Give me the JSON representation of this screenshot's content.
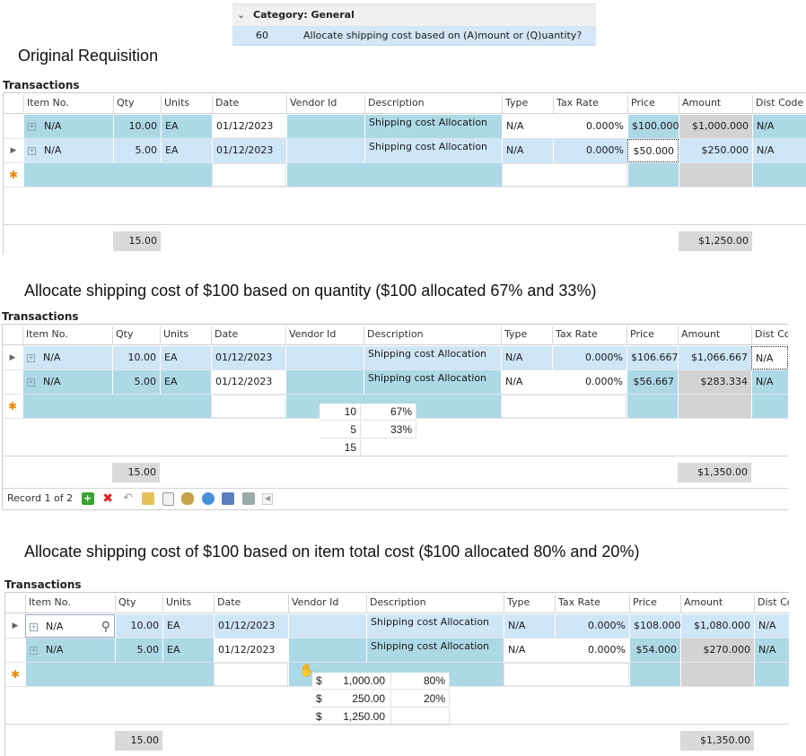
{
  "category": {
    "title": "Category: General",
    "row_number": "60",
    "row_text": "Allocate shipping cost based on (A)mount or (Q)uantity?"
  },
  "headings": {
    "original": "Original Requisition",
    "by_quantity": "Allocate shipping cost of $100 based on quantity ($100 allocated 67% and 33%)",
    "by_cost": "Allocate shipping cost of $100 based on item total cost ($100 allocated 80% and 20%)"
  },
  "grid_title": "Transactions",
  "columns": [
    "Item No.",
    "Qty",
    "Units",
    "Date",
    "Vendor Id",
    "Description",
    "Type",
    "Tax Rate",
    "Price",
    "Amount",
    "Dist Code"
  ],
  "columns_cut": [
    "Item No.",
    "Qty",
    "Units",
    "Date",
    "Vendor Id",
    "Description",
    "Type",
    "Tax Rate",
    "Price",
    "Amount",
    "Dist Cod"
  ],
  "grid1": {
    "rows": [
      {
        "item": "N/A",
        "qty": "10.00",
        "units": "EA",
        "date": "01/12/2023",
        "vendor": "",
        "desc": "Shipping cost Allocation",
        "type": "N/A",
        "tax": "0.000%",
        "price": "$100.000",
        "amount": "$1,000.000",
        "dist": "N/A"
      },
      {
        "item": "N/A",
        "qty": "5.00",
        "units": "EA",
        "date": "01/12/2023",
        "vendor": "",
        "desc": "Shipping cost Allocation",
        "type": "N/A",
        "tax": "0.000%",
        "price": "$50.000",
        "amount": "$250.000",
        "dist": "N/A"
      }
    ],
    "total_qty": "15.00",
    "total_amount": "$1,250.00"
  },
  "grid2": {
    "rows": [
      {
        "item": "N/A",
        "qty": "10.00",
        "units": "EA",
        "date": "01/12/2023",
        "vendor": "",
        "desc": "Shipping cost Allocation",
        "type": "N/A",
        "tax": "0.000%",
        "price": "$106.667",
        "amount": "$1,066.667",
        "dist": "N/A"
      },
      {
        "item": "N/A",
        "qty": "5.00",
        "units": "EA",
        "date": "01/12/2023",
        "vendor": "",
        "desc": "Shipping cost Allocation",
        "type": "N/A",
        "tax": "0.000%",
        "price": "$56.667",
        "amount": "$283.334",
        "dist": "N/A"
      }
    ],
    "total_qty": "15.00",
    "total_amount": "$1,350.00",
    "calc": [
      [
        "10",
        "67%"
      ],
      [
        "5",
        "33%"
      ],
      [
        "15",
        ""
      ]
    ],
    "record_text": "Record 1 of 2"
  },
  "grid3": {
    "rows": [
      {
        "item": "N/A",
        "qty": "10.00",
        "units": "EA",
        "date": "01/12/2023",
        "vendor": "",
        "desc": "Shipping cost Allocation",
        "type": "N/A",
        "tax": "0.000%",
        "price": "$108.000",
        "amount": "$1,080.000",
        "dist": "N/A"
      },
      {
        "item": "N/A",
        "qty": "5.00",
        "units": "EA",
        "date": "01/12/2023",
        "vendor": "",
        "desc": "Shipping cost Allocation",
        "type": "N/A",
        "tax": "0.000%",
        "price": "$54.000",
        "amount": "$270.000",
        "dist": "N/A"
      }
    ],
    "total_qty": "15.00",
    "total_amount": "$1,350.00",
    "calc": [
      [
        "$",
        "1,000.00",
        "80%"
      ],
      [
        "$",
        "250.00",
        "20%"
      ],
      [
        "$",
        "1,250.00",
        ""
      ]
    ]
  },
  "colors": {
    "row_blue": "#add8e6",
    "row_light": "#cfe6f7",
    "amount_gray": "#d3d3d3",
    "new_row_star": "#e88a00"
  },
  "icons": [
    "expand-icon",
    "search-icon",
    "add-icon",
    "delete-icon",
    "undo-icon",
    "folder-icon",
    "copy-icon",
    "money-bag-icon",
    "globe-icon",
    "import-icon",
    "flag-icon",
    "scroll-left-icon"
  ]
}
